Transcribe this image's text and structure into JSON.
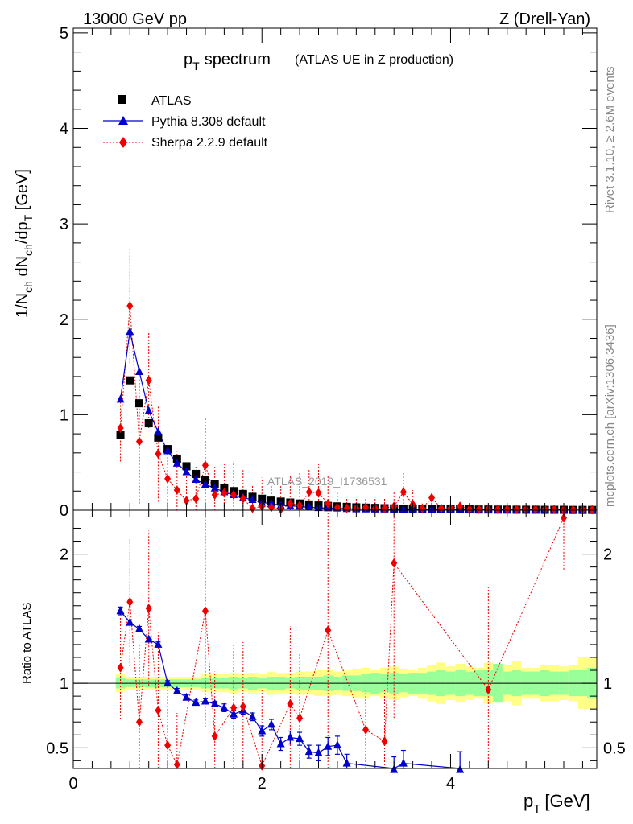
{
  "header": {
    "left": "13000 GeV pp",
    "right": "Z (Drell-Yan)"
  },
  "side_labels": {
    "rivet": "Rivet 3.1.10, ≥ 2.6M events",
    "mcplots": "mcplots.cern.ch [arXiv:1306.3436]"
  },
  "watermark": "ATLAS_2019_I1736531",
  "chart_data": [
    {
      "type": "scatter",
      "title_main": "p",
      "title_sub": "T",
      "title_word": "spectrum",
      "title_note": "(ATLAS UE in Z production)",
      "ylabel": "1/N_ch dN_ch/dp_T [GeV]",
      "xlim": [
        0,
        5.55
      ],
      "ylim": [
        0,
        5.05
      ],
      "xticks": [
        0,
        2,
        4
      ],
      "yticks": [
        0,
        1,
        2,
        3,
        4,
        5
      ],
      "ytick_labels": [
        "0",
        "1",
        "2",
        "3",
        "4",
        "5"
      ],
      "legend": [
        {
          "label": "ATLAS",
          "marker": "square",
          "color": "#000000"
        },
        {
          "label": "Pythia 8.308 default",
          "marker": "triangle",
          "color": "#0000cc"
        },
        {
          "label": "Sherpa 2.2.9 default",
          "marker": "diamond",
          "color": "#ee0000"
        }
      ],
      "series": [
        {
          "name": "ATLAS",
          "x": [
            0.5,
            0.6,
            0.7,
            0.8,
            0.9,
            1.0,
            1.1,
            1.2,
            1.3,
            1.4,
            1.5,
            1.6,
            1.7,
            1.8,
            1.9,
            2.0,
            2.1,
            2.2,
            2.3,
            2.4,
            2.5,
            2.6,
            2.7,
            2.8,
            2.9,
            3.0,
            3.1,
            3.2,
            3.3,
            3.4,
            3.5,
            3.6,
            3.7,
            3.8,
            3.9,
            4.0,
            4.1,
            4.2,
            4.3,
            4.4,
            4.5,
            4.6,
            4.7,
            4.8,
            4.9,
            5.0,
            5.1,
            5.2,
            5.3,
            5.4,
            5.5
          ],
          "y": [
            0.79,
            1.36,
            1.12,
            0.91,
            0.76,
            0.64,
            0.54,
            0.46,
            0.38,
            0.32,
            0.27,
            0.23,
            0.2,
            0.17,
            0.14,
            0.12,
            0.1,
            0.09,
            0.08,
            0.07,
            0.06,
            0.05,
            0.045,
            0.04,
            0.035,
            0.03,
            0.027,
            0.024,
            0.021,
            0.019,
            0.017,
            0.015,
            0.013,
            0.012,
            0.011,
            0.01,
            0.009,
            0.008,
            0.007,
            0.007,
            0.006,
            0.006,
            0.005,
            0.005,
            0.005,
            0.004,
            0.004,
            0.004,
            0.003,
            0.003,
            0.003
          ]
        },
        {
          "name": "Pythia 8.308 default",
          "x": [
            0.5,
            0.6,
            0.7,
            0.8,
            0.9,
            1.0,
            1.1,
            1.2,
            1.3,
            1.4,
            1.5,
            1.6,
            1.7,
            1.8,
            1.9,
            2.0,
            2.1,
            2.2,
            2.3,
            2.4,
            2.5,
            2.6,
            2.7,
            2.8,
            2.9,
            3.0,
            3.1,
            3.2,
            3.3,
            3.4,
            3.5,
            3.6,
            3.7,
            3.8,
            3.9,
            4.0,
            4.1,
            4.2,
            4.3,
            4.4,
            4.5,
            4.6,
            4.7,
            4.8,
            4.9,
            5.0,
            5.1,
            5.2,
            5.3,
            5.4,
            5.5
          ],
          "y": [
            1.16,
            1.87,
            1.45,
            1.04,
            0.82,
            0.62,
            0.49,
            0.4,
            0.32,
            0.27,
            0.23,
            0.19,
            0.16,
            0.13,
            0.11,
            0.08,
            0.07,
            0.05,
            0.045,
            0.04,
            0.03,
            0.024,
            0.022,
            0.02,
            0.015,
            0.012,
            0.011,
            0.01,
            0.009,
            0.008,
            0.007,
            0.006,
            0.005,
            0.005,
            0.004,
            0.004,
            0.004,
            0.003,
            0.003,
            0.003,
            0.003,
            0.002,
            0.002,
            0.002,
            0.002,
            0.002,
            0.002,
            0.002,
            0.001,
            0.001,
            0.001
          ],
          "yerr": [
            0.03,
            0.04,
            0.03,
            0.03,
            0.02,
            0.02,
            0.02,
            0.01,
            0.01,
            0.01,
            0.01,
            0.01,
            0.01,
            0.01,
            0.01,
            0.01,
            0.01,
            0.01,
            0.005,
            0.005,
            0.005,
            0.005,
            0.005,
            0.005,
            0.005,
            0.004,
            0.004,
            0.004,
            0.004,
            0.004,
            0.004,
            0.003,
            0.003,
            0.003,
            0.003,
            0.003,
            0.003,
            0.002,
            0.002,
            0.002,
            0.002,
            0.002,
            0.002,
            0.002,
            0.002,
            0.002,
            0.002,
            0.002,
            0.001,
            0.001,
            0.001
          ]
        },
        {
          "name": "Sherpa 2.2.9 default",
          "x": [
            0.5,
            0.6,
            0.7,
            0.8,
            0.9,
            1.0,
            1.1,
            1.2,
            1.3,
            1.4,
            1.5,
            1.6,
            1.7,
            1.8,
            1.9,
            2.0,
            2.1,
            2.2,
            2.3,
            2.4,
            2.5,
            2.6,
            2.7,
            2.8,
            2.9,
            3.0,
            3.1,
            3.2,
            3.3,
            3.4,
            3.5,
            3.6,
            3.7,
            3.8,
            3.9,
            4.0,
            4.1,
            4.2,
            4.3,
            4.4,
            4.5,
            4.6,
            4.7,
            4.8,
            4.9,
            5.0,
            5.1,
            5.2,
            5.3,
            5.4,
            5.5
          ],
          "y": [
            0.86,
            2.14,
            0.72,
            1.36,
            0.59,
            0.33,
            0.21,
            0.1,
            0.12,
            0.47,
            0.16,
            0.18,
            0.16,
            0.12,
            0.02,
            0.04,
            0.03,
            0.01,
            0.07,
            0.05,
            0.19,
            0.18,
            0.07,
            0.03,
            0.02,
            0.02,
            0.03,
            0.02,
            0.02,
            0.04,
            0.19,
            0.06,
            0.02,
            0.13,
            0.02,
            0.02,
            0.04,
            0.01,
            0.01,
            0.01,
            0.01,
            0.01,
            0.01,
            0.01,
            0.01,
            0.01,
            0.01,
            0.005,
            0.005,
            0.005,
            0.005
          ],
          "yerr": [
            0.35,
            0.6,
            0.65,
            0.5,
            0.5,
            0.35,
            0.4,
            0.3,
            0.35,
            0.5,
            0.3,
            0.3,
            0.35,
            0.3,
            0.25,
            0.3,
            0.25,
            0.25,
            0.3,
            0.35,
            0.25,
            0.3,
            0.3,
            0.15,
            0.1,
            0.1,
            0.1,
            0.1,
            0.1,
            0.15,
            0.2,
            0.15,
            0.05,
            0.05,
            0.02,
            0.02,
            0.05,
            0.01,
            0.01,
            0.01,
            0.01,
            0.01,
            0.01,
            0.01,
            0.01,
            0.01,
            0.01,
            0.005,
            0.005,
            0.005,
            0.005
          ]
        }
      ]
    },
    {
      "type": "scatter",
      "ylabel": "Ratio to ATLAS",
      "xlabel_main": "p",
      "xlabel_sub": "T",
      "xlabel_unit": "[GeV]",
      "xlim": [
        0,
        5.55
      ],
      "ylim": [
        0.34,
        2.34
      ],
      "xticks": [
        0,
        2,
        4
      ],
      "yticks": [
        0.5,
        1,
        2
      ],
      "ytick_labels": [
        "0.5",
        "1",
        "2"
      ],
      "reference_line": 1,
      "bands": {
        "x": [
          0.45,
          0.55,
          0.65,
          0.75,
          0.85,
          0.95,
          1.05,
          1.15,
          1.25,
          1.35,
          1.45,
          1.55,
          1.65,
          1.75,
          1.85,
          1.95,
          2.05,
          2.15,
          2.25,
          2.35,
          2.45,
          2.55,
          2.65,
          2.75,
          2.85,
          2.95,
          3.05,
          3.15,
          3.25,
          3.35,
          3.45,
          3.55,
          3.65,
          3.75,
          3.85,
          3.95,
          4.05,
          4.15,
          4.25,
          4.35,
          4.45,
          4.55,
          4.65,
          4.75,
          4.85,
          4.95,
          5.05,
          5.15,
          5.25,
          5.35,
          5.45,
          5.55
        ],
        "inner_halfwidth": [
          0.04,
          0.03,
          0.03,
          0.03,
          0.03,
          0.03,
          0.03,
          0.03,
          0.03,
          0.04,
          0.04,
          0.04,
          0.05,
          0.04,
          0.05,
          0.04,
          0.05,
          0.05,
          0.04,
          0.05,
          0.05,
          0.05,
          0.06,
          0.05,
          0.06,
          0.06,
          0.07,
          0.08,
          0.07,
          0.08,
          0.07,
          0.08,
          0.08,
          0.09,
          0.1,
          0.09,
          0.1,
          0.09,
          0.1,
          0.1,
          0.15,
          0.09,
          0.1,
          0.09,
          0.09,
          0.1,
          0.09,
          0.09,
          0.1,
          0.1,
          0.12
        ],
        "outer_halfwidth": [
          0.07,
          0.05,
          0.05,
          0.05,
          0.05,
          0.05,
          0.05,
          0.05,
          0.05,
          0.07,
          0.07,
          0.07,
          0.08,
          0.07,
          0.08,
          0.07,
          0.09,
          0.08,
          0.08,
          0.09,
          0.09,
          0.1,
          0.1,
          0.09,
          0.1,
          0.11,
          0.12,
          0.1,
          0.12,
          0.13,
          0.11,
          0.1,
          0.12,
          0.14,
          0.16,
          0.13,
          0.15,
          0.13,
          0.12,
          0.16,
          0.14,
          0.14,
          0.17,
          0.12,
          0.12,
          0.14,
          0.14,
          0.13,
          0.14,
          0.2,
          0.2
        ]
      },
      "series": [
        {
          "name": "Pythia 8.308 default",
          "x": [
            0.5,
            0.6,
            0.7,
            0.8,
            0.9,
            1.0,
            1.1,
            1.2,
            1.3,
            1.4,
            1.5,
            1.6,
            1.7,
            1.8,
            1.9,
            2.0,
            2.1,
            2.2,
            2.3,
            2.4,
            2.5,
            2.6,
            2.7,
            2.8,
            2.9,
            3.4,
            3.5,
            4.1
          ],
          "y": [
            1.56,
            1.47,
            1.42,
            1.34,
            1.3,
            1.0,
            0.94,
            0.89,
            0.85,
            0.86,
            0.84,
            0.81,
            0.76,
            0.79,
            0.74,
            0.63,
            0.68,
            0.53,
            0.58,
            0.57,
            0.47,
            0.46,
            0.51,
            0.52,
            0.38,
            0.33,
            0.38,
            0.33
          ],
          "yerr": [
            0.03,
            0.02,
            0.02,
            0.02,
            0.02,
            0.02,
            0.02,
            0.02,
            0.02,
            0.02,
            0.02,
            0.03,
            0.03,
            0.03,
            0.03,
            0.04,
            0.04,
            0.05,
            0.05,
            0.05,
            0.05,
            0.06,
            0.07,
            0.07,
            0.07,
            0.1,
            0.1,
            0.14
          ]
        },
        {
          "name": "Sherpa 2.2.9 default",
          "x": [
            0.5,
            0.6,
            0.7,
            0.8,
            0.9,
            1.0,
            1.1,
            1.4,
            1.5,
            1.7,
            1.8,
            2.0,
            2.3,
            2.4,
            2.7,
            3.1,
            3.3,
            3.4,
            4.4,
            5.2
          ],
          "y": [
            1.12,
            1.63,
            0.7,
            1.58,
            0.79,
            0.52,
            0.37,
            1.56,
            0.59,
            0.81,
            0.82,
            0.36,
            0.84,
            0.73,
            1.41,
            0.64,
            0.55,
            1.93,
            0.95,
            2.28
          ],
          "yerr": [
            0.4,
            0.5,
            0.6,
            0.6,
            0.6,
            0.5,
            0.4,
            0.9,
            0.5,
            0.5,
            0.5,
            0.6,
            0.6,
            0.5,
            1.1,
            0.3,
            0.4,
            1.2,
            0.8,
            0.4
          ]
        }
      ]
    }
  ]
}
